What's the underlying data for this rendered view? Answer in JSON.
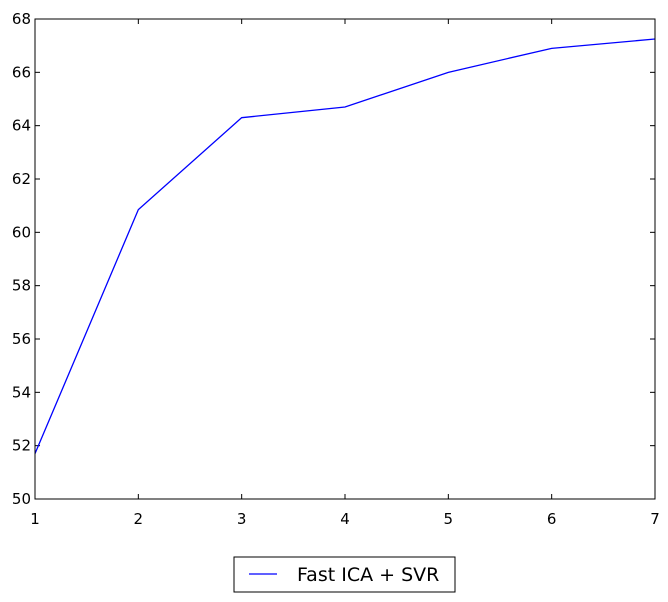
{
  "chart_data": {
    "type": "line",
    "title": "",
    "xlabel": "",
    "ylabel": "",
    "xlim": [
      1,
      7
    ],
    "ylim": [
      50,
      68
    ],
    "xticks": [
      1,
      2,
      3,
      4,
      5,
      6,
      7
    ],
    "yticks": [
      50,
      52,
      54,
      56,
      58,
      60,
      62,
      64,
      66,
      68
    ],
    "grid": false,
    "legend_position": "bottom-center",
    "series": [
      {
        "name": "Fast ICA + SVR",
        "color": "#0000ff",
        "x": [
          1,
          2,
          3,
          4,
          5,
          6,
          7
        ],
        "y": [
          51.7,
          60.85,
          64.3,
          64.7,
          66.0,
          66.9,
          67.25
        ]
      }
    ]
  }
}
